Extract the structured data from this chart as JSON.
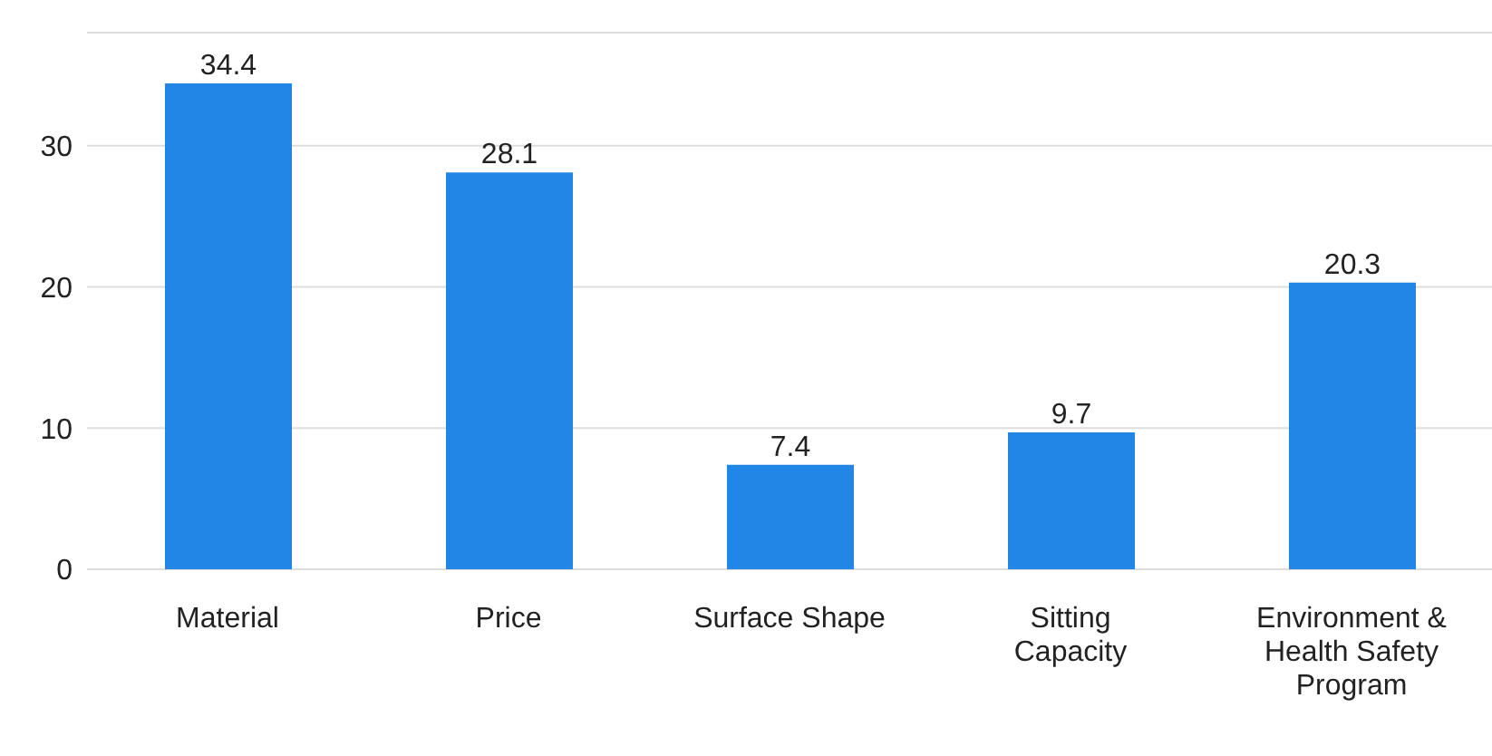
{
  "chart_data": {
    "type": "bar",
    "categories": [
      "Material",
      "Price",
      "Surface Shape",
      "Sitting Capacity",
      "Environment & Health Safety Program"
    ],
    "values": [
      34.4,
      28.1,
      7.4,
      9.7,
      20.3
    ],
    "color": "#2186e5",
    "ylim": [
      0,
      38
    ],
    "yticks": [
      0,
      10,
      20,
      30
    ],
    "grid": "y",
    "data_labels": true,
    "legend": false
  }
}
